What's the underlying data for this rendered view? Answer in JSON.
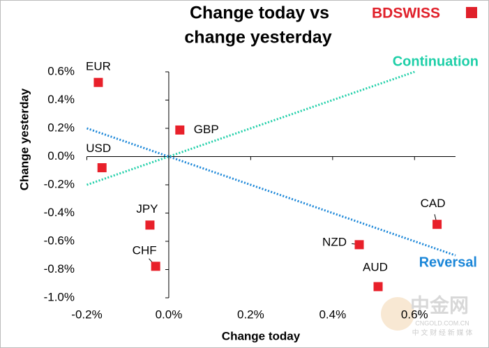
{
  "chart_data": {
    "type": "scatter",
    "title": [
      "Change today vs",
      "change yesterday"
    ],
    "x_label": "Change today",
    "y_label": "Change yesterday",
    "categories": [
      "EUR",
      "GBP",
      "USD",
      "JPY",
      "CHF",
      "NZD",
      "AUD",
      "CAD"
    ],
    "x": [
      -0.172,
      0.027,
      -0.163,
      -0.046,
      -0.032,
      0.465,
      0.511,
      0.655
    ],
    "values": [
      0.525,
      0.188,
      -0.079,
      -0.485,
      -0.777,
      -0.624,
      -0.921,
      -0.48
    ],
    "color": "#e8202a",
    "lines": [
      {
        "name": "Continuation",
        "color": "#1fcfa8",
        "x": [
          -0.2,
          0.6
        ],
        "values": [
          -0.2,
          0.6
        ]
      },
      {
        "name": "Reversal",
        "color": "#1a86d8",
        "x": [
          -0.2,
          0.7
        ],
        "values": [
          0.2,
          -0.7
        ]
      }
    ],
    "xlim": [
      -0.2,
      0.7
    ],
    "ylim": [
      -1.0,
      0.6
    ],
    "xticks": [
      {
        "value": -0.2,
        "label": "-0.2%"
      },
      {
        "value": 0,
        "label": "0.0%"
      },
      {
        "value": 0.2,
        "label": "0.2%"
      },
      {
        "value": 0.4,
        "label": "0.4%"
      },
      {
        "value": 0.6,
        "label": "0.6%"
      }
    ],
    "yticks": [
      {
        "value": 0.6,
        "label": "0.6%"
      },
      {
        "value": 0.4,
        "label": "0.4%"
      },
      {
        "value": 0.2,
        "label": "0.2%"
      },
      {
        "value": 0,
        "label": "0.0%"
      },
      {
        "value": -0.2,
        "label": "-0.2%"
      },
      {
        "value": -0.4,
        "label": "-0.4%"
      },
      {
        "value": -0.6,
        "label": "-0.6%"
      },
      {
        "value": -0.8,
        "label": "-0.8%"
      },
      {
        "value": -1.0,
        "label": "-1.0%"
      }
    ]
  },
  "logo": "BDSWISS",
  "watermark": {
    "main": "中金网",
    "site": "CNGOLD.COM.CN",
    "tagline": "中 文 财 经 新 媒 体"
  }
}
